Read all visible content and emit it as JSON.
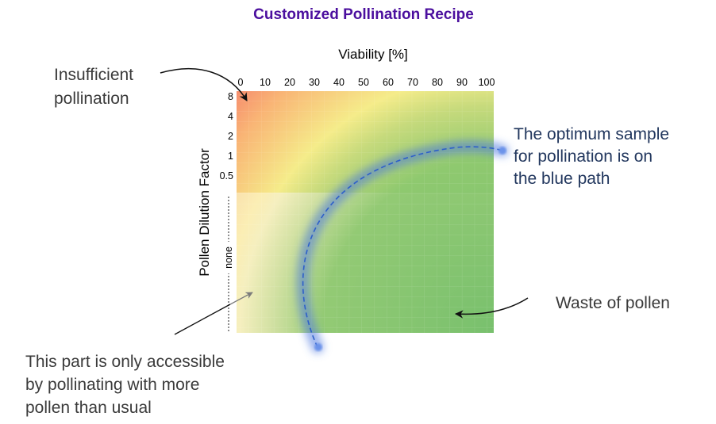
{
  "chart_data": {
    "type": "heatmap",
    "title": "Customized Pollination Recipe",
    "xlabel": "Viability [%]",
    "ylabel": "Pollen Dilution Factor",
    "x_ticks": [
      "0",
      "10",
      "20",
      "30",
      "40",
      "50",
      "60",
      "70",
      "80",
      "90",
      "100"
    ],
    "xlim": [
      0,
      100
    ],
    "y_ticks": [
      "8",
      "4",
      "2",
      "1",
      "0.5"
    ],
    "y_extra_label": "none",
    "colors": {
      "red": "#f26b6b",
      "orange": "#f9a86f",
      "yellow": "#f7e98a",
      "light_green": "#b7d77e",
      "green": "#78c06d",
      "path_blue": "#3a6fd8"
    },
    "annotations": {
      "insufficient": [
        "Insufficient",
        "pollination"
      ],
      "optimum": [
        "The optimum sample",
        "for pollination is on",
        "the blue path"
      ],
      "waste": "Waste of pollen",
      "accessible": [
        "This part is only accessible",
        "by pollinating with more",
        "pollen than usual"
      ]
    }
  }
}
